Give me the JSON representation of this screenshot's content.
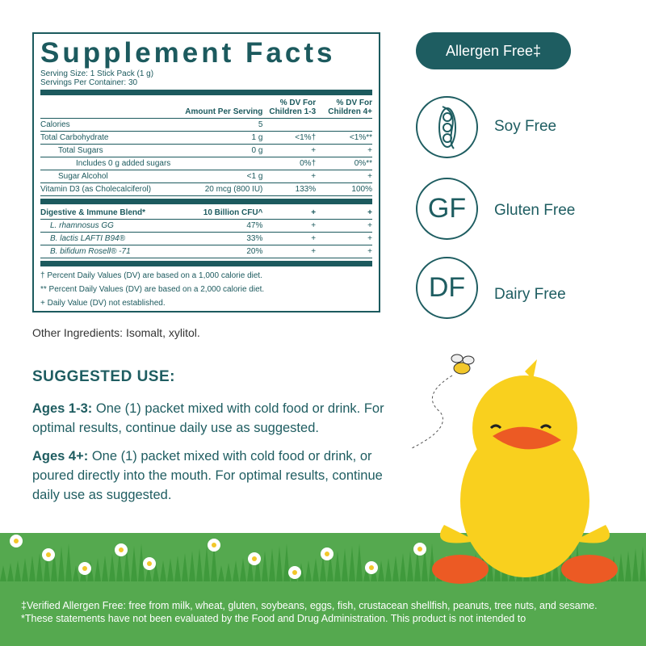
{
  "facts": {
    "title": "Supplement Facts",
    "serving_size": "Serving Size: 1 Stick Pack (1 g)",
    "servings": "Servings Per Container: 30",
    "headers": [
      "",
      "Amount Per Serving",
      "% DV For Children 1-3",
      "% DV For Children 4+"
    ],
    "rows": [
      [
        "Calories",
        "5",
        "",
        ""
      ],
      [
        "Total Carbohydrate",
        "1 g",
        "<1%†",
        "<1%**"
      ],
      [
        "Total Sugars",
        "0 g",
        "+",
        "+"
      ],
      [
        "Includes 0 g added sugars",
        "",
        "0%†",
        "0%**"
      ],
      [
        "Sugar Alcohol",
        "<1 g",
        "+",
        "+"
      ],
      [
        "Vitamin D3 (as Cholecalciferol)",
        "20 mcg (800 IU)",
        "133%",
        "100%"
      ]
    ],
    "blend": [
      [
        "Digestive & Immune Blend*",
        "10 Billion CFU^",
        "+",
        "+"
      ],
      [
        "L. rhamnosus GG",
        "47%",
        "+",
        "+"
      ],
      [
        "B. lactis LAFTI B94®",
        "33%",
        "+",
        "+"
      ],
      [
        "B. bifidum Rosell® -71",
        "20%",
        "+",
        "+"
      ]
    ],
    "notes": [
      "† Percent Daily Values (DV) are based on a 1,000 calorie diet.",
      "** Percent Daily Values (DV) are based on a 2,000 calorie diet.",
      "+ Daily Value (DV) not established."
    ]
  },
  "other": "Other Ingredients: Isomalt, xylitol.",
  "suggested": {
    "title": "SUGGESTED USE:",
    "a_label": "Ages 1-3:",
    "a_text": " One (1) packet mixed with cold food or drink. For optimal results, continue daily use as suggested.",
    "b_label": "Ages 4+:",
    "b_text": " One (1) packet mixed with cold food or drink, or poured directly into the mouth. For optimal results, continue daily use as suggested."
  },
  "badges": {
    "allergen": "Allergen Free‡",
    "soy": "Soy Free",
    "gf_icon": "GF",
    "gluten": "Gluten Free",
    "df_icon": "DF",
    "dairy": "Dairy Free"
  },
  "footer": [
    "‡Verified Allergen Free: free from milk, wheat, gluten, soybeans, eggs, fish, crustacean shellfish, peanuts, tree nuts, and sesame.",
    "*These statements have not been evaluated by the Food and Drug Administration. This product is not intended to"
  ],
  "colors": {
    "teal": "#1e5d61",
    "grass": "#55a94f",
    "duck": "#f9d01e",
    "beak": "#ec5a24"
  }
}
